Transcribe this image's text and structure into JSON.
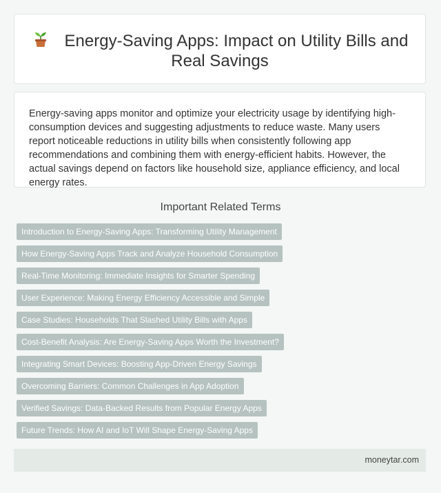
{
  "header": {
    "icon": "seedling-icon",
    "title": "Energy-Saving Apps: Impact on Utility Bills and Real Savings"
  },
  "intro": {
    "text": "Energy-saving apps monitor and optimize your electricity usage by identifying high-consumption devices and suggesting adjustments to reduce waste. Many users report noticeable reductions in utility bills when consistently following app recommendations and combining them with energy-efficient habits. However, the actual savings depend on factors like household size, appliance efficiency, and local energy rates."
  },
  "related": {
    "heading": "Important Related Terms",
    "terms": [
      "Introduction to Energy-Saving Apps: Transforming Utility Management",
      "How Energy-Saving Apps Track and Analyze Household Consumption",
      "Real-Time Monitoring: Immediate Insights for Smarter Spending",
      "User Experience: Making Energy Efficiency Accessible and Simple",
      "Case Studies: Households That Slashed Utility Bills with Apps",
      "Cost-Benefit Analysis: Are Energy-Saving Apps Worth the Investment?",
      "Integrating Smart Devices: Boosting App-Driven Energy Savings",
      "Overcoming Barriers: Common Challenges in App Adoption",
      "Verified Savings: Data-Backed Results from Popular Energy Apps",
      "Future Trends: How AI and IoT Will Shape Energy-Saving Apps"
    ]
  },
  "footer": {
    "site": "moneytar.com"
  },
  "colors": {
    "background": "#f4f7f5",
    "tag": "#b5c2c0",
    "footer": "#e4ebe7"
  }
}
